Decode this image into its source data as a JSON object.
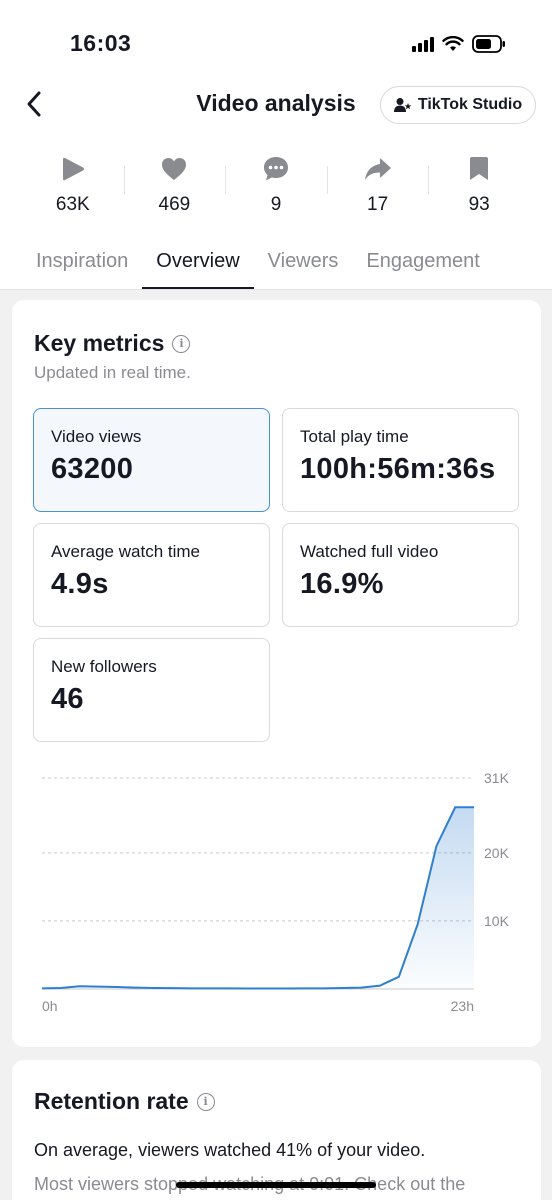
{
  "status_bar": {
    "time": "16:03"
  },
  "header": {
    "title": "Video analysis",
    "studio_button": "TikTok Studio"
  },
  "stats": [
    {
      "icon": "play-icon",
      "value": "63K"
    },
    {
      "icon": "heart-icon",
      "value": "469"
    },
    {
      "icon": "comment-icon",
      "value": "9"
    },
    {
      "icon": "share-icon",
      "value": "17"
    },
    {
      "icon": "bookmark-icon",
      "value": "93"
    }
  ],
  "tabs": [
    {
      "label": "Inspiration",
      "active": false
    },
    {
      "label": "Overview",
      "active": true
    },
    {
      "label": "Viewers",
      "active": false
    },
    {
      "label": "Engagement",
      "active": false
    }
  ],
  "key_metrics": {
    "title": "Key metrics",
    "subtitle": "Updated in real time.",
    "items": [
      {
        "label": "Video views",
        "value": "63200",
        "selected": true
      },
      {
        "label": "Total play time",
        "value": "100h:56m:36s",
        "selected": false
      },
      {
        "label": "Average watch time",
        "value": "4.9s",
        "selected": false
      },
      {
        "label": "Watched full video",
        "value": "16.9%",
        "selected": false
      },
      {
        "label": "New followers",
        "value": "46",
        "selected": false
      }
    ]
  },
  "chart_data": {
    "type": "area",
    "x_tick_labels": [
      "0h",
      "23h"
    ],
    "y_tick_labels": [
      "10K",
      "20K",
      "31K"
    ],
    "ylim": [
      0,
      31000
    ],
    "x": [
      0,
      1,
      2,
      3,
      4,
      5,
      6,
      7,
      8,
      9,
      10,
      11,
      12,
      13,
      14,
      15,
      16,
      17,
      18,
      19,
      20,
      21,
      22,
      23
    ],
    "values": [
      100,
      150,
      400,
      350,
      300,
      200,
      150,
      120,
      100,
      90,
      90,
      80,
      80,
      80,
      90,
      100,
      150,
      200,
      500,
      1800,
      9500,
      21000,
      26700,
      26700
    ],
    "grid": true,
    "accent": "#2f7fcf"
  },
  "retention": {
    "title": "Retention rate",
    "line1": "On average, viewers watched 41% of your video.",
    "line2": "Most viewers stopped watching at 0:01. Check out the"
  }
}
